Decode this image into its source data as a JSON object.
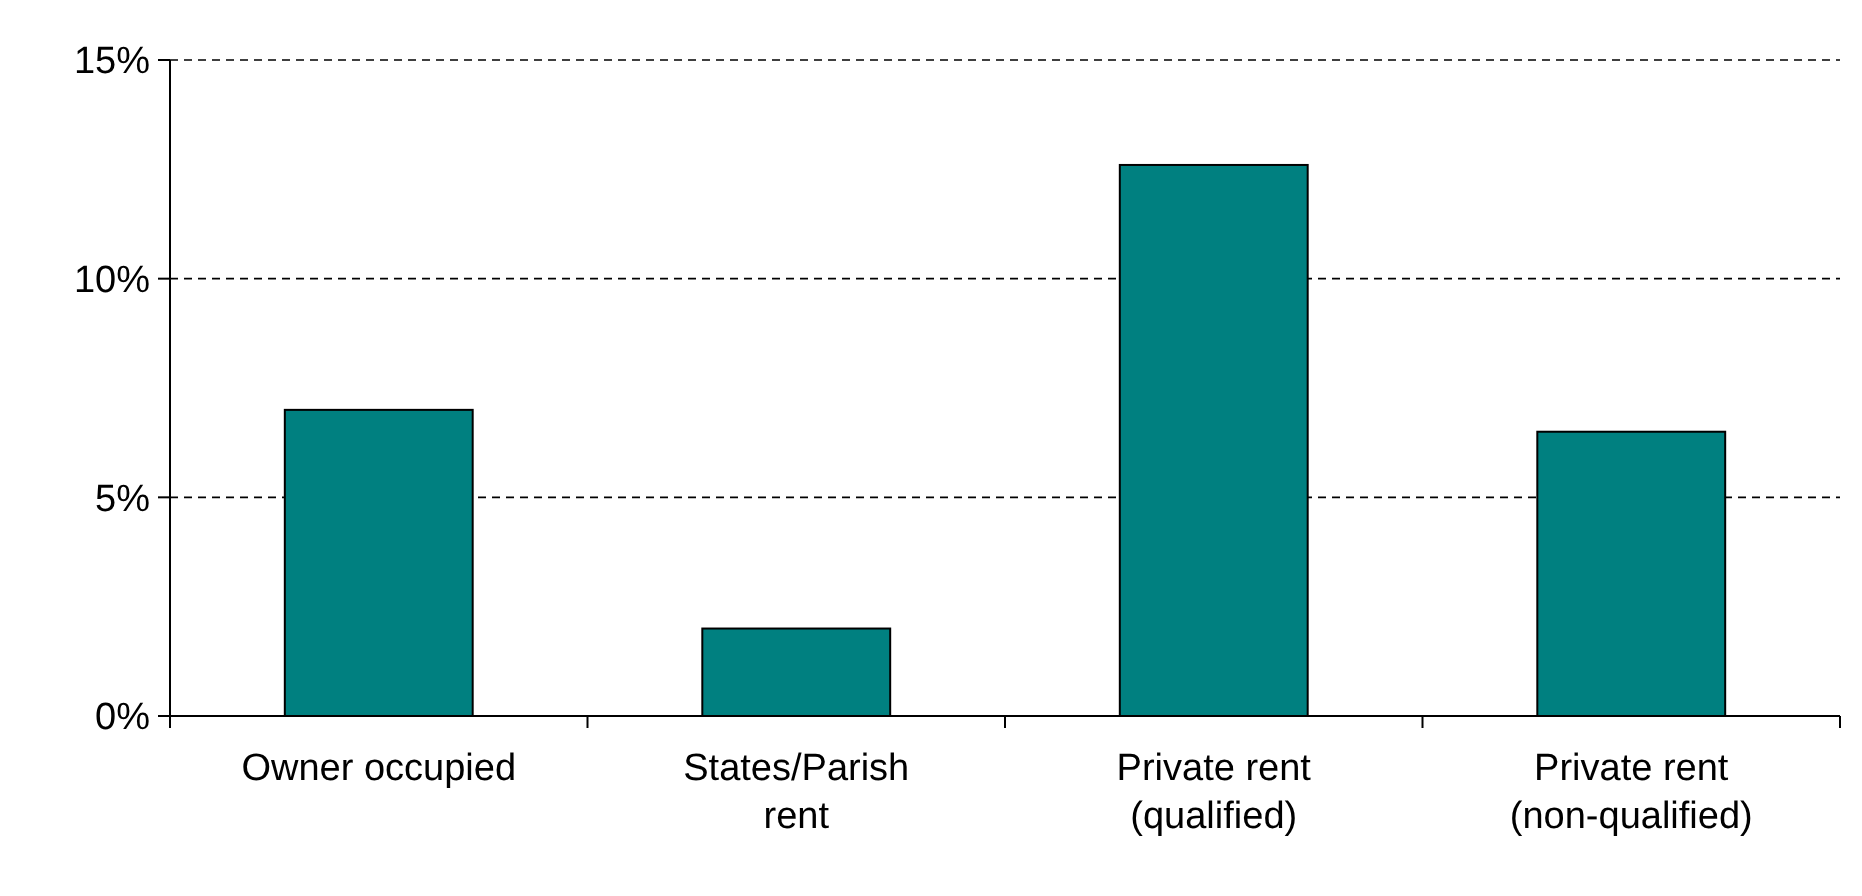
{
  "chart_data": {
    "type": "bar",
    "categories": [
      "Owner occupied",
      "States/Parish rent",
      "Private rent (qualified)",
      "Private rent (non-qualified)"
    ],
    "values": [
      7.0,
      2.0,
      12.6,
      6.5
    ],
    "color": "#008080",
    "ylim": [
      0,
      15
    ],
    "yticks": [
      {
        "value": 0,
        "label": "0%"
      },
      {
        "value": 5,
        "label": "5%"
      },
      {
        "value": 10,
        "label": "10%"
      },
      {
        "value": 15,
        "label": "15%"
      }
    ],
    "grid": "y"
  }
}
